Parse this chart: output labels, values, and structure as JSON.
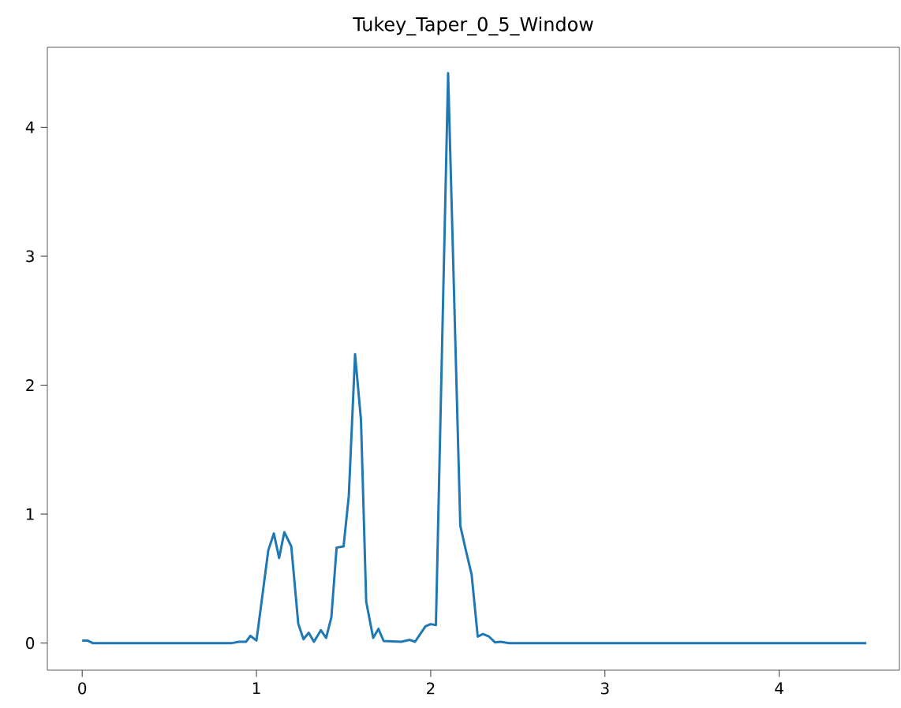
{
  "chart_data": {
    "type": "line",
    "title": "Tukey_Taper_0_5_Window",
    "series": [
      {
        "color": "#1f77b4",
        "x": [
          0,
          0.03,
          0.06,
          0.1,
          0.2,
          0.3,
          0.4,
          0.5,
          0.6,
          0.7,
          0.8,
          0.86,
          0.9,
          0.94,
          0.965,
          1.0,
          1.013,
          1.068,
          1.1,
          1.13,
          1.16,
          1.2,
          1.24,
          1.27,
          1.3,
          1.33,
          1.37,
          1.4,
          1.43,
          1.46,
          1.5,
          1.53,
          1.566,
          1.6,
          1.63,
          1.67,
          1.7,
          1.73,
          1.83,
          1.88,
          1.91,
          1.97,
          2.0,
          2.03,
          2.1,
          2.17,
          2.2,
          2.235,
          2.27,
          2.3,
          2.335,
          2.37,
          2.4,
          2.45,
          2.6,
          3.0,
          3.5,
          4.0,
          4.5
        ],
        "values": [
          0.02,
          0.02,
          0.0,
          0.0,
          0.0,
          0.0,
          0.0,
          0.0,
          0.0,
          0.0,
          0.0,
          0.0,
          0.01,
          0.01,
          0.056,
          0.02,
          0.15,
          0.72,
          0.85,
          0.66,
          0.86,
          0.75,
          0.15,
          0.03,
          0.08,
          0.01,
          0.1,
          0.04,
          0.2,
          0.74,
          0.75,
          1.14,
          2.24,
          1.73,
          0.32,
          0.04,
          0.11,
          0.016,
          0.01,
          0.025,
          0.01,
          0.13,
          0.147,
          0.14,
          4.42,
          0.91,
          0.73,
          0.53,
          0.05,
          0.07,
          0.05,
          0.005,
          0.01,
          0.0,
          0.0,
          0.0,
          0.0,
          0.0,
          0.0
        ]
      }
    ],
    "xlim": [
      -0.2,
      4.69
    ],
    "ylim": [
      -0.21,
      4.62
    ],
    "xticks": [
      0,
      1,
      2,
      3,
      4
    ],
    "yticks": [
      0,
      1,
      2,
      3,
      4
    ]
  }
}
